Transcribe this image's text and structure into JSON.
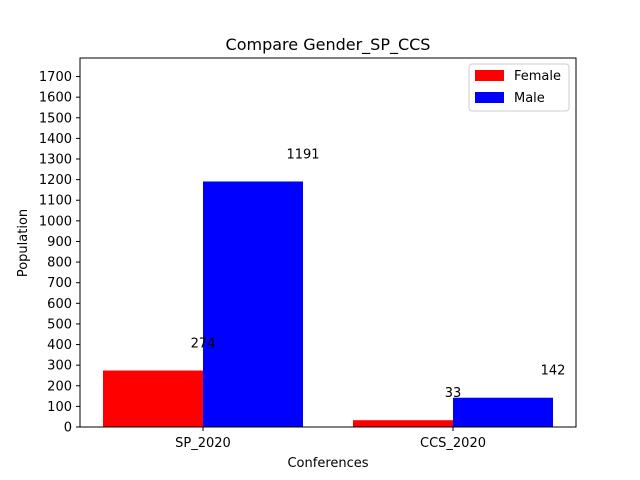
{
  "chart_data": {
    "type": "bar",
    "title": "Compare Gender_SP_CCS",
    "xlabel": "Conferences",
    "ylabel": "Population",
    "categories": [
      "SP_2020",
      "CCS_2020"
    ],
    "series": [
      {
        "name": "Female",
        "color": "#ff0000",
        "values": [
          274,
          33
        ]
      },
      {
        "name": "Male",
        "color": "#0000ff",
        "values": [
          1191,
          142
        ]
      }
    ],
    "ylim": [
      0,
      1790
    ],
    "yticks": [
      0,
      100,
      200,
      300,
      400,
      500,
      600,
      700,
      800,
      900,
      1000,
      1100,
      1200,
      1300,
      1400,
      1500,
      1600,
      1700
    ],
    "grid": false,
    "legend": "top-right"
  }
}
